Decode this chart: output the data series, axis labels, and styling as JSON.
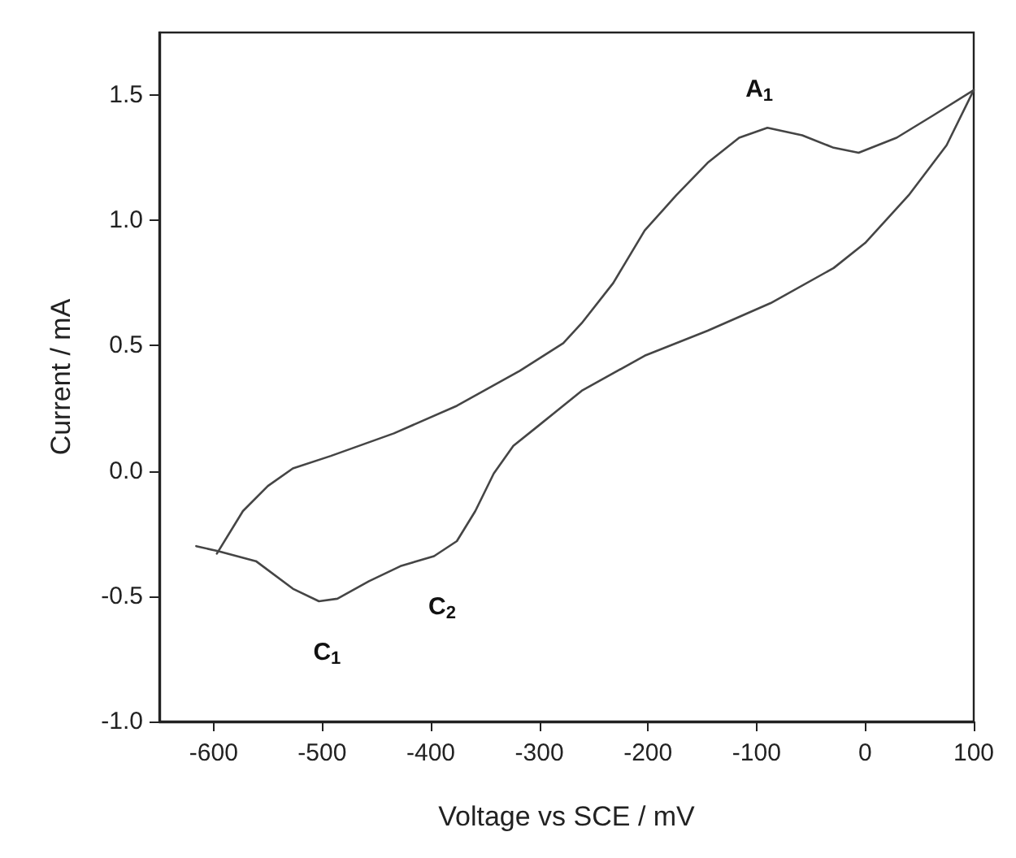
{
  "chart_data": {
    "type": "line",
    "xlabel": "Voltage vs SCE / mV",
    "ylabel": "Current / mA",
    "xlim": [
      -650,
      100
    ],
    "xticks": [
      -600,
      -500,
      -400,
      -300,
      -200,
      -100,
      0,
      100
    ],
    "ylim": [
      -1.0,
      1.75
    ],
    "yticks": [
      {
        "value": -1,
        "label": "-1.0"
      },
      {
        "value": -0.5,
        "label": "-0.5"
      },
      {
        "value": 0,
        "label": "0.0"
      },
      {
        "value": 0.5,
        "label": "0.5"
      },
      {
        "value": 1,
        "label": "1.0"
      },
      {
        "value": 1.5,
        "label": "1.5"
      }
    ],
    "series": [
      {
        "color": "#454545",
        "x": [
          -597,
          -573,
          -550,
          -527,
          -492,
          -434,
          -376,
          -318,
          -278,
          -261,
          -232,
          -203,
          -174,
          -145,
          -116,
          -90,
          -58,
          -29,
          -6,
          29,
          63,
          100,
          75,
          40,
          0,
          -29,
          -87,
          -145,
          -203,
          -261,
          -301,
          -324,
          -342,
          -359,
          -376,
          -397,
          -428,
          -457,
          -486,
          -503,
          -527,
          -561,
          -596,
          -616
        ],
        "values": [
          -0.33,
          -0.16,
          -0.06,
          0.01,
          0.06,
          0.15,
          0.26,
          0.4,
          0.51,
          0.59,
          0.75,
          0.96,
          1.1,
          1.23,
          1.33,
          1.37,
          1.34,
          1.29,
          1.27,
          1.33,
          1.42,
          1.52,
          1.3,
          1.1,
          0.91,
          0.81,
          0.67,
          0.56,
          0.46,
          0.32,
          0.18,
          0.1,
          -0.01,
          -0.16,
          -0.28,
          -0.34,
          -0.38,
          -0.44,
          -0.51,
          -0.52,
          -0.47,
          -0.36,
          -0.32,
          -0.3
        ]
      }
    ],
    "annotations": [
      {
        "text": "A$_{1}$",
        "x": -90,
        "y": 1.37
      },
      {
        "text": "C$_{1}$",
        "x": -503,
        "y": -0.52
      },
      {
        "text": "C$_{2}$",
        "x": -397,
        "y": -0.34
      }
    ]
  }
}
